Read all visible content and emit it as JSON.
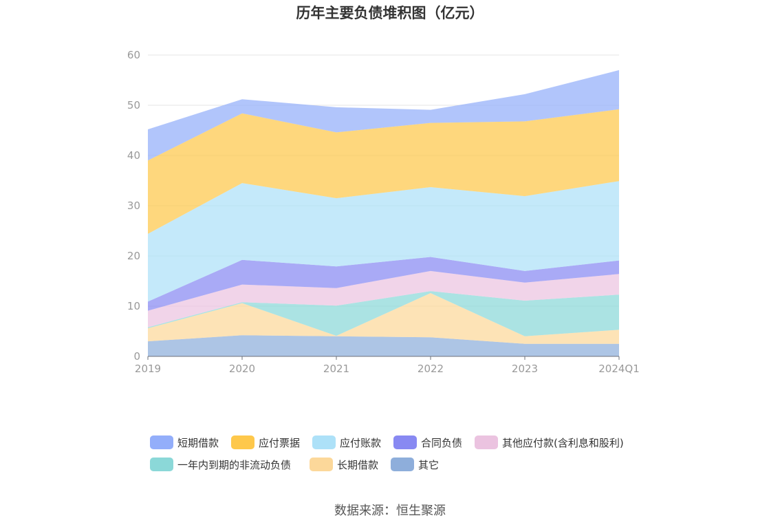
{
  "title": "历年主要负债堆积图（亿元）",
  "source": "数据来源：恒生聚源",
  "chart_data": {
    "type": "area",
    "stacked": true,
    "categories": [
      "2019",
      "2020",
      "2021",
      "2022",
      "2023",
      "2024Q1"
    ],
    "ylim": [
      0,
      60
    ],
    "yticks": [
      "0",
      "10",
      "20",
      "30",
      "40",
      "50",
      "60"
    ],
    "grid": true,
    "legend_position": "bottom",
    "series": [
      {
        "name": "其它",
        "color": "#8eaedb",
        "values": [
          3.0,
          4.2,
          4.0,
          3.8,
          2.5,
          2.5
        ]
      },
      {
        "name": "长期借款",
        "color": "#fcd89a",
        "values": [
          2.6,
          6.4,
          0.1,
          8.8,
          1.5,
          2.8
        ]
      },
      {
        "name": "一年内到期的非流动负债",
        "color": "#8bd8d8",
        "values": [
          0.2,
          0.2,
          6.0,
          0.4,
          7.1,
          7.0
        ]
      },
      {
        "name": "其他应付款(含利息和股利)",
        "color": "#ebc3e0",
        "values": [
          3.3,
          3.5,
          3.5,
          4.0,
          3.6,
          4.1
        ]
      },
      {
        "name": "合同负债",
        "color": "#8889f2",
        "values": [
          1.8,
          4.9,
          4.3,
          2.8,
          2.3,
          2.7
        ]
      },
      {
        "name": "应付账款",
        "color": "#ade1f8",
        "values": [
          13.5,
          15.3,
          13.6,
          13.9,
          14.9,
          15.8
        ]
      },
      {
        "name": "应付票据",
        "color": "#fec84b",
        "values": [
          14.6,
          13.9,
          13.1,
          12.8,
          14.9,
          14.3
        ]
      },
      {
        "name": "短期借款",
        "color": "#93aefa",
        "values": [
          6.2,
          2.8,
          5.0,
          2.6,
          5.4,
          7.8
        ]
      }
    ],
    "legend_order": [
      "短期借款",
      "应付票据",
      "应付账款",
      "合同负债",
      "其他应付款(含利息和股利)",
      "一年内到期的非流动负债",
      "长期借款",
      "其它"
    ]
  }
}
